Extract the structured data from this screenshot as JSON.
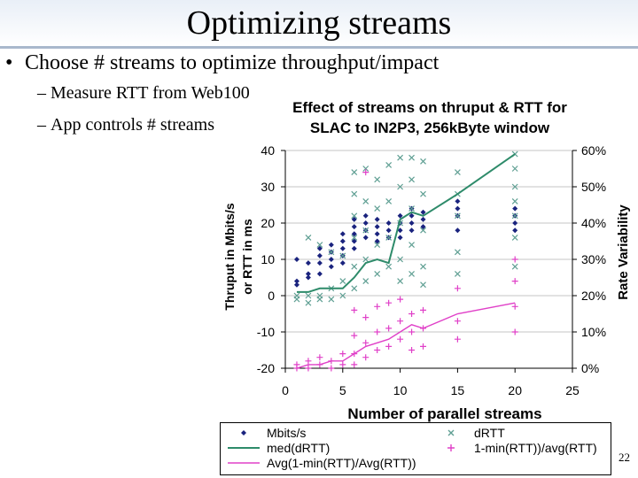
{
  "slide": {
    "title": "Optimizing streams",
    "bullet": "Choose # streams to optimize throughput/impact",
    "subbullets": [
      "Measure RTT from Web100",
      "App controls # streams"
    ],
    "bullet_symbol": "•",
    "dash_symbol": "–",
    "page_number": "22"
  },
  "chart_data": {
    "type": "scatter",
    "title_line1": "Effect of streams on thruput & RTT for",
    "title_line2": "SLAC to IN2P3, 256kByte window",
    "xlabel": "Number of parallel streams",
    "ylabel_line1": "Thruput in Mbits/s",
    "ylabel_line2": "or RTT in ms",
    "y2label": "Rate Variability",
    "xlim": [
      0,
      25
    ],
    "ylim": [
      -20,
      40
    ],
    "y2lim": [
      0,
      60
    ],
    "xticks": [
      "0",
      "5",
      "10",
      "15",
      "20",
      "25"
    ],
    "yticks": [
      "-20",
      "-10",
      "0",
      "10",
      "20",
      "30",
      "40"
    ],
    "y2ticks": [
      "0%",
      "10%",
      "20%",
      "30%",
      "40%",
      "50%",
      "60%"
    ],
    "colors": {
      "mbits": "#1a237e",
      "drtt": "#5f9f93",
      "med_line": "#2e8b6a",
      "pink": "#e040c8"
    },
    "series": [
      {
        "name": "Mbits/s",
        "marker": "diamond",
        "points": [
          [
            1,
            4
          ],
          [
            1,
            10
          ],
          [
            1,
            3
          ],
          [
            2,
            5
          ],
          [
            2,
            6
          ],
          [
            2,
            9
          ],
          [
            3,
            13
          ],
          [
            3,
            11
          ],
          [
            3,
            9
          ],
          [
            3,
            6
          ],
          [
            4,
            14
          ],
          [
            4,
            12
          ],
          [
            4,
            10
          ],
          [
            4,
            8
          ],
          [
            5,
            17
          ],
          [
            5,
            15
          ],
          [
            5,
            13
          ],
          [
            5,
            11
          ],
          [
            5,
            9
          ],
          [
            6,
            21
          ],
          [
            6,
            19
          ],
          [
            6,
            17
          ],
          [
            6,
            15
          ],
          [
            6,
            13
          ],
          [
            7,
            20
          ],
          [
            7,
            18
          ],
          [
            7,
            16
          ],
          [
            7,
            22
          ],
          [
            8,
            21
          ],
          [
            8,
            19
          ],
          [
            8,
            17
          ],
          [
            8,
            15
          ],
          [
            9,
            20
          ],
          [
            9,
            18
          ],
          [
            9,
            16
          ],
          [
            10,
            22
          ],
          [
            10,
            20
          ],
          [
            10,
            18
          ],
          [
            10,
            16
          ],
          [
            11,
            24
          ],
          [
            11,
            22
          ],
          [
            11,
            20
          ],
          [
            11,
            18
          ],
          [
            12,
            23
          ],
          [
            12,
            21
          ],
          [
            12,
            19
          ],
          [
            15,
            26
          ],
          [
            15,
            24
          ],
          [
            15,
            22
          ],
          [
            15,
            18
          ],
          [
            20,
            24
          ],
          [
            20,
            22
          ],
          [
            20,
            20
          ],
          [
            20,
            18
          ]
        ]
      },
      {
        "name": "dRTT",
        "marker": "x",
        "points": [
          [
            1,
            0
          ],
          [
            1,
            -1
          ],
          [
            2,
            16
          ],
          [
            2,
            0
          ],
          [
            2,
            -2
          ],
          [
            3,
            14
          ],
          [
            3,
            0
          ],
          [
            3,
            -1
          ],
          [
            4,
            12
          ],
          [
            4,
            2
          ],
          [
            4,
            -1
          ],
          [
            5,
            11
          ],
          [
            5,
            4
          ],
          [
            5,
            0
          ],
          [
            6,
            34
          ],
          [
            6,
            28
          ],
          [
            6,
            22
          ],
          [
            6,
            16
          ],
          [
            6,
            8
          ],
          [
            6,
            2
          ],
          [
            7,
            35
          ],
          [
            7,
            26
          ],
          [
            7,
            18
          ],
          [
            7,
            10
          ],
          [
            7,
            4
          ],
          [
            8,
            32
          ],
          [
            8,
            24
          ],
          [
            8,
            14
          ],
          [
            8,
            6
          ],
          [
            9,
            36
          ],
          [
            9,
            26
          ],
          [
            9,
            16
          ],
          [
            9,
            8
          ],
          [
            10,
            38
          ],
          [
            10,
            30
          ],
          [
            10,
            20
          ],
          [
            10,
            10
          ],
          [
            10,
            4
          ],
          [
            11,
            38
          ],
          [
            11,
            32
          ],
          [
            11,
            24
          ],
          [
            11,
            14
          ],
          [
            11,
            6
          ],
          [
            12,
            37
          ],
          [
            12,
            28
          ],
          [
            12,
            18
          ],
          [
            12,
            8
          ],
          [
            12,
            3
          ],
          [
            15,
            34
          ],
          [
            15,
            28
          ],
          [
            15,
            22
          ],
          [
            15,
            12
          ],
          [
            15,
            6
          ],
          [
            20,
            39
          ],
          [
            20,
            35
          ],
          [
            20,
            30
          ],
          [
            20,
            26
          ],
          [
            20,
            22
          ],
          [
            20,
            16
          ],
          [
            20,
            8
          ]
        ]
      },
      {
        "name": "med(dRTT)",
        "marker": "line",
        "points": [
          [
            1,
            1
          ],
          [
            2,
            1
          ],
          [
            3,
            2
          ],
          [
            4,
            2
          ],
          [
            5,
            2
          ],
          [
            6,
            5
          ],
          [
            7,
            9
          ],
          [
            8,
            10
          ],
          [
            9,
            9
          ],
          [
            10,
            21
          ],
          [
            11,
            23
          ],
          [
            12,
            22
          ],
          [
            15,
            28
          ],
          [
            20,
            39
          ]
        ]
      },
      {
        "name": "1-min(RTT))/avg(RTT)",
        "marker": "plus",
        "points": [
          [
            1,
            -19
          ],
          [
            1,
            -20
          ],
          [
            2,
            -18
          ],
          [
            2,
            -20
          ],
          [
            3,
            -17
          ],
          [
            3,
            -19
          ],
          [
            4,
            -18
          ],
          [
            4,
            -20
          ],
          [
            5,
            -16
          ],
          [
            5,
            -19
          ],
          [
            6,
            -4
          ],
          [
            6,
            -11
          ],
          [
            6,
            -16
          ],
          [
            6,
            -19
          ],
          [
            7,
            34
          ],
          [
            7,
            -6
          ],
          [
            7,
            -13
          ],
          [
            7,
            -17
          ],
          [
            8,
            -3
          ],
          [
            8,
            -10
          ],
          [
            8,
            -15
          ],
          [
            9,
            -2
          ],
          [
            9,
            -9
          ],
          [
            9,
            -14
          ],
          [
            10,
            -1
          ],
          [
            10,
            -7
          ],
          [
            10,
            -12
          ],
          [
            11,
            -5
          ],
          [
            11,
            -10
          ],
          [
            11,
            -15
          ],
          [
            12,
            -4
          ],
          [
            12,
            -9
          ],
          [
            12,
            -14
          ],
          [
            15,
            2
          ],
          [
            15,
            -7
          ],
          [
            15,
            -12
          ],
          [
            20,
            10
          ],
          [
            20,
            4
          ],
          [
            20,
            -3
          ],
          [
            20,
            -10
          ]
        ]
      },
      {
        "name": "Avg(1-min(RTT)/Avg(RTT))",
        "marker": "line",
        "points": [
          [
            1,
            -20
          ],
          [
            2,
            -19
          ],
          [
            3,
            -19
          ],
          [
            4,
            -18
          ],
          [
            5,
            -18
          ],
          [
            6,
            -16
          ],
          [
            7,
            -14
          ],
          [
            8,
            -13
          ],
          [
            9,
            -12
          ],
          [
            10,
            -10
          ],
          [
            11,
            -8
          ],
          [
            12,
            -9
          ],
          [
            15,
            -5
          ],
          [
            20,
            -2
          ]
        ]
      }
    ]
  },
  "legend": {
    "mbits": "Mbits/s",
    "drtt": "dRTT",
    "med": "med(dRTT)",
    "ratio": "1-min(RTT))/avg(RTT)",
    "avg": "Avg(1-min(RTT)/Avg(RTT))"
  }
}
